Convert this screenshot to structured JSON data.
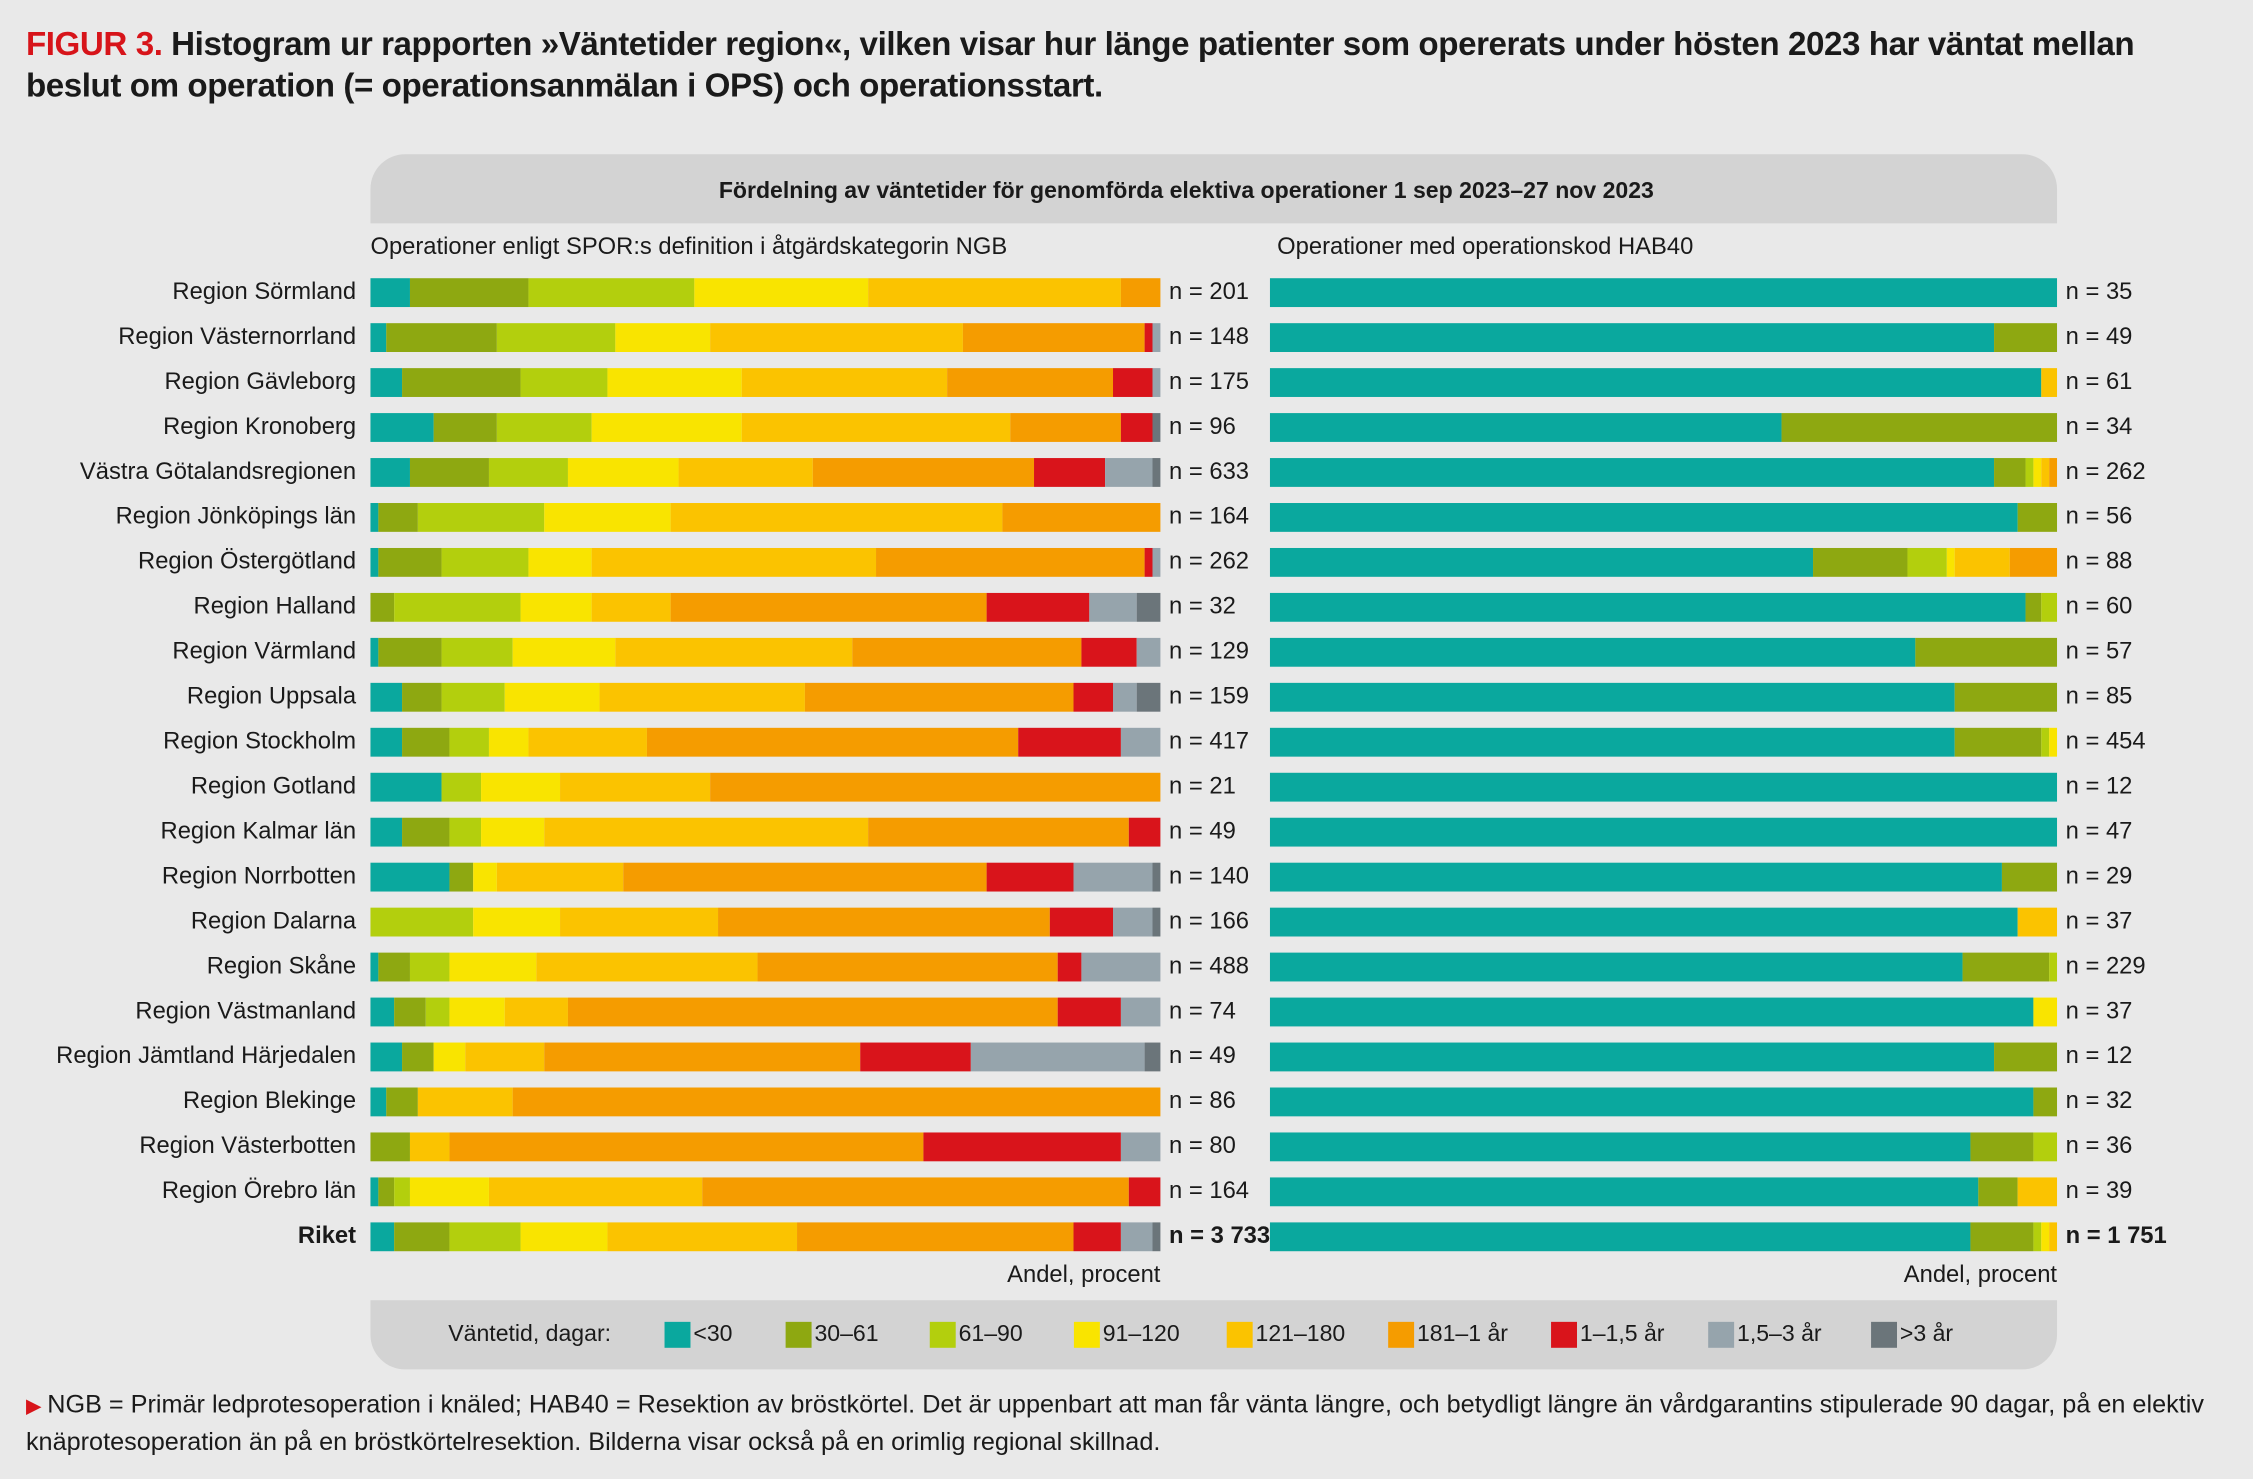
{
  "figure_label": "FIGUR 3.",
  "title": "Histogram ur rapporten »Väntetider region«, vilken visar hur länge patienter som opererats under hösten 2023 har väntat mellan beslut om operation (= operationsanmälan i OPS) och operationsstart.",
  "heading": "Fördelning av väntetider för genomförda elektiva operationer 1 sep 2023–27 nov 2023",
  "legend_title": "Väntetid, dagar:",
  "footnote": "NGB = Primär ledprotesoperation i knäled; HAB40 = Resektion av bröstkörtel. Det är uppenbart att man får vänta längre, och betydligt längre än vårdgarantins stipulerade 90 dagar, på en elektiv knäprotesoperation än på en bröstkörtelresektion. Bilderna visar också på en orimlig regional skillnad.",
  "chart_data": [
    {
      "type": "stacked-bar-horizontal",
      "title": "Operationer enligt SPOR:s definition i åtgärdskategorin NGB",
      "xlabel": "Andel, procent",
      "xlim": [
        0,
        100
      ],
      "categories": [
        "Region Sörmland",
        "Region Västernorrland",
        "Region Gävleborg",
        "Region Kronoberg",
        "Västra Götalandsregionen",
        "Region Jönköpings län",
        "Region Östergötland",
        "Region Halland",
        "Region Värmland",
        "Region Uppsala",
        "Region Stockholm",
        "Region Gotland",
        "Region Kalmar län",
        "Region Norrbotten",
        "Region Dalarna",
        "Region Skåne",
        "Region Västmanland",
        "Region Jämtland Härjedalen",
        "Region Blekinge",
        "Region Västerbotten",
        "Region Örebro län",
        "Riket"
      ],
      "n_labels": [
        "n = 201",
        "n = 148",
        "n = 175",
        "n = 96",
        "n = 633",
        "n = 164",
        "n = 262",
        "n = 32",
        "n = 129",
        "n = 159",
        "n = 417",
        "n = 21",
        "n = 49",
        "n = 140",
        "n = 166",
        "n = 488",
        "n = 74",
        "n = 49",
        "n = 86",
        "n = 80",
        "n = 164",
        "n = 3 733"
      ],
      "series": [
        {
          "name": "<30",
          "color": "#0aa89e",
          "values": [
            5,
            2,
            4,
            8,
            5,
            1,
            1,
            0,
            1,
            4,
            4,
            9,
            4,
            10,
            0,
            1,
            3,
            4,
            2,
            0,
            1,
            3
          ]
        },
        {
          "name": "30–61",
          "color": "#8ea811",
          "values": [
            15,
            14,
            15,
            8,
            10,
            5,
            8,
            3,
            8,
            5,
            6,
            0,
            6,
            3,
            0,
            4,
            4,
            4,
            4,
            5,
            2,
            7
          ]
        },
        {
          "name": "61–90",
          "color": "#b3cf0d",
          "values": [
            21,
            15,
            11,
            12,
            10,
            16,
            11,
            16,
            9,
            8,
            5,
            5,
            4,
            0,
            13,
            5,
            3,
            0,
            0,
            0,
            2,
            9
          ]
        },
        {
          "name": "91–120",
          "color": "#f9e400",
          "values": [
            22,
            12,
            17,
            19,
            14,
            16,
            8,
            9,
            13,
            12,
            5,
            10,
            8,
            3,
            11,
            11,
            7,
            4,
            0,
            0,
            10,
            11
          ]
        },
        {
          "name": "121–180",
          "color": "#fbc300",
          "values": [
            32,
            32,
            26,
            34,
            17,
            42,
            36,
            10,
            30,
            26,
            15,
            19,
            41,
            16,
            20,
            28,
            8,
            10,
            12,
            5,
            27,
            24
          ]
        },
        {
          "name": "181–1 år",
          "color": "#f59c00",
          "values": [
            5,
            23,
            21,
            14,
            28,
            20,
            34,
            40,
            29,
            34,
            47,
            57,
            33,
            46,
            42,
            38,
            62,
            40,
            82,
            60,
            54,
            35
          ]
        },
        {
          "name": "1–1,5 år",
          "color": "#d9141b",
          "values": [
            0,
            1,
            5,
            4,
            9,
            0,
            1,
            13,
            7,
            5,
            13,
            0,
            4,
            11,
            8,
            3,
            8,
            14,
            0,
            25,
            4,
            6
          ]
        },
        {
          "name": "1,5–3 år",
          "color": "#96a4ac",
          "values": [
            0,
            1,
            1,
            0,
            6,
            0,
            1,
            6,
            3,
            3,
            5,
            0,
            0,
            10,
            5,
            10,
            5,
            22,
            0,
            5,
            0,
            4
          ]
        },
        {
          "name": ">3 år",
          "color": "#6b757a",
          "values": [
            0,
            0,
            0,
            1,
            1,
            0,
            0,
            3,
            0,
            3,
            0,
            0,
            0,
            1,
            1,
            0,
            0,
            2,
            0,
            0,
            0,
            1
          ]
        }
      ]
    },
    {
      "type": "stacked-bar-horizontal",
      "title": "Operationer med operationskod HAB40",
      "xlabel": "Andel, procent",
      "xlim": [
        0,
        100
      ],
      "n_labels": [
        "n = 35",
        "n = 49",
        "n = 61",
        "n = 34",
        "n = 262",
        "n = 56",
        "n = 88",
        "n = 60",
        "n = 57",
        "n = 85",
        "n = 454",
        "n = 12",
        "n = 47",
        "n = 29",
        "n = 37",
        "n = 229",
        "n = 37",
        "n = 12",
        "n = 32",
        "n = 36",
        "n = 39",
        "n = 1 751"
      ],
      "series": [
        {
          "values": [
            100,
            92,
            98,
            65,
            92,
            95,
            69,
            96,
            82,
            87,
            87,
            100,
            100,
            93,
            95,
            88,
            97,
            92,
            97,
            89,
            90,
            89
          ]
        },
        {
          "values": [
            0,
            8,
            0,
            35,
            4,
            5,
            12,
            2,
            18,
            13,
            11,
            0,
            0,
            7,
            0,
            11,
            0,
            8,
            3,
            8,
            5,
            8
          ]
        },
        {
          "values": [
            0,
            0,
            0,
            0,
            1,
            0,
            5,
            2,
            0,
            0,
            1,
            0,
            0,
            0,
            0,
            1,
            0,
            0,
            0,
            3,
            0,
            1
          ]
        },
        {
          "values": [
            0,
            0,
            0,
            0,
            1,
            0,
            1,
            0,
            0,
            0,
            1,
            0,
            0,
            0,
            0,
            0,
            3,
            0,
            0,
            0,
            0,
            1
          ]
        },
        {
          "values": [
            0,
            0,
            2,
            0,
            1,
            0,
            7,
            0,
            0,
            0,
            0,
            0,
            0,
            0,
            5,
            0,
            0,
            0,
            0,
            0,
            5,
            1
          ]
        },
        {
          "values": [
            0,
            0,
            0,
            0,
            1,
            0,
            6,
            0,
            0,
            0,
            0,
            0,
            0,
            0,
            0,
            0,
            0,
            0,
            0,
            0,
            0,
            0
          ]
        },
        {
          "values": [
            0,
            0,
            0,
            0,
            0,
            0,
            0,
            0,
            0,
            0,
            0,
            0,
            0,
            0,
            0,
            0,
            0,
            0,
            0,
            0,
            0,
            0
          ]
        },
        {
          "values": [
            0,
            0,
            0,
            0,
            0,
            0,
            0,
            0,
            0,
            0,
            0,
            0,
            0,
            0,
            0,
            0,
            0,
            0,
            0,
            0,
            0,
            0
          ]
        },
        {
          "values": [
            0,
            0,
            0,
            0,
            0,
            0,
            0,
            0,
            0,
            0,
            0,
            0,
            0,
            0,
            0,
            0,
            0,
            0,
            0,
            0,
            0,
            0
          ]
        }
      ]
    }
  ]
}
